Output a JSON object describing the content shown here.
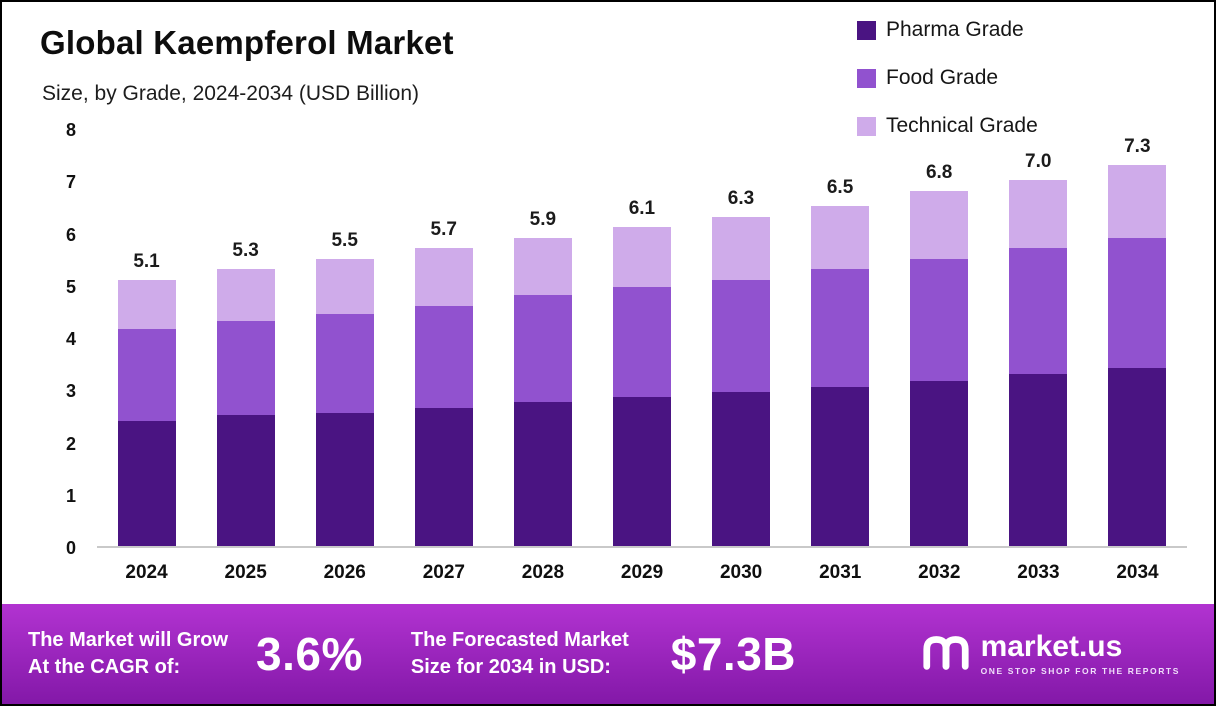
{
  "header": {
    "title": "Global Kaempferol Market",
    "subtitle": "Size, by Grade, 2024-2034 (USD Billion)"
  },
  "chart_data": {
    "type": "bar",
    "stacked": true,
    "title": "Global Kaempferol Market Size, by Grade, 2024-2034 (USD Billion)",
    "categories": [
      "2024",
      "2025",
      "2026",
      "2027",
      "2028",
      "2029",
      "2030",
      "2031",
      "2032",
      "2033",
      "2034"
    ],
    "series": [
      {
        "name": "Pharma Grade",
        "color": "#4a1482",
        "values": [
          2.4,
          2.5,
          2.55,
          2.65,
          2.75,
          2.85,
          2.95,
          3.05,
          3.15,
          3.3,
          3.4
        ]
      },
      {
        "name": "Food Grade",
        "color": "#9152cf",
        "values": [
          1.75,
          1.8,
          1.9,
          1.95,
          2.05,
          2.1,
          2.15,
          2.25,
          2.35,
          2.4,
          2.5
        ]
      },
      {
        "name": "Technical Grade",
        "color": "#cfabea",
        "values": [
          0.95,
          1.0,
          1.05,
          1.1,
          1.1,
          1.15,
          1.2,
          1.2,
          1.3,
          1.3,
          1.4
        ]
      }
    ],
    "totals": [
      "5.1",
      "5.3",
      "5.5",
      "5.7",
      "5.9",
      "6.1",
      "6.3",
      "6.5",
      "6.8",
      "7.0",
      "7.3"
    ],
    "xlabel": "",
    "ylabel": "",
    "ylim": [
      0,
      8
    ],
    "yticks": [
      0,
      1,
      2,
      3,
      4,
      5,
      6,
      7,
      8
    ],
    "grid": false,
    "legend_position": "top-right"
  },
  "footer": {
    "cagr_label_line1": "The Market will Grow",
    "cagr_label_line2": "At the CAGR of:",
    "cagr_value": "3.6%",
    "forecast_label_line1": "The Forecasted Market",
    "forecast_label_line2": "Size for 2034 in USD:",
    "forecast_value": "$7.3B",
    "logo_text": "market.us",
    "logo_tagline": "ONE STOP SHOP FOR THE REPORTS",
    "colors": {
      "gradient_top": "#b233d1",
      "gradient_bottom": "#8318a8"
    }
  }
}
